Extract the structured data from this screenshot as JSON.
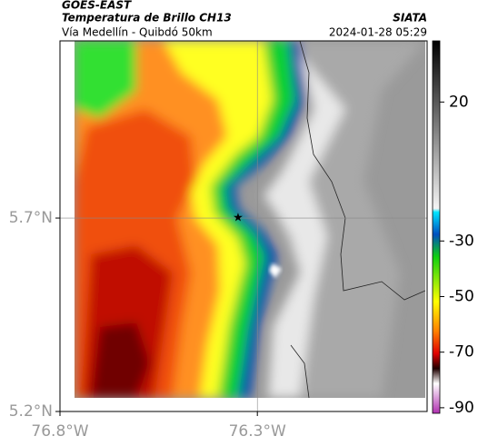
{
  "header": {
    "title": "GOES-EAST",
    "subtitle": "Temperatura de Brillo CH13",
    "region": "Vía Medellín - Quibdó 50km",
    "source": "SIATA",
    "timestamp": "2024-01-28 05:29"
  },
  "map": {
    "xlim": [
      -76.8,
      -75.87
    ],
    "ylim": [
      5.2,
      6.158
    ],
    "xticks": [
      {
        "value": -76.8,
        "label": "76.8°W"
      },
      {
        "value": -76.3,
        "label": "76.3°W"
      }
    ],
    "yticks": [
      {
        "value": 5.2,
        "label": "5.2°N"
      },
      {
        "value": 5.7,
        "label": "5.7°N"
      }
    ],
    "grid": true
  },
  "colorbar": {
    "lim": [
      -92,
      42
    ],
    "ticks": [
      20,
      -30,
      -50,
      -70,
      -90
    ]
  }
}
